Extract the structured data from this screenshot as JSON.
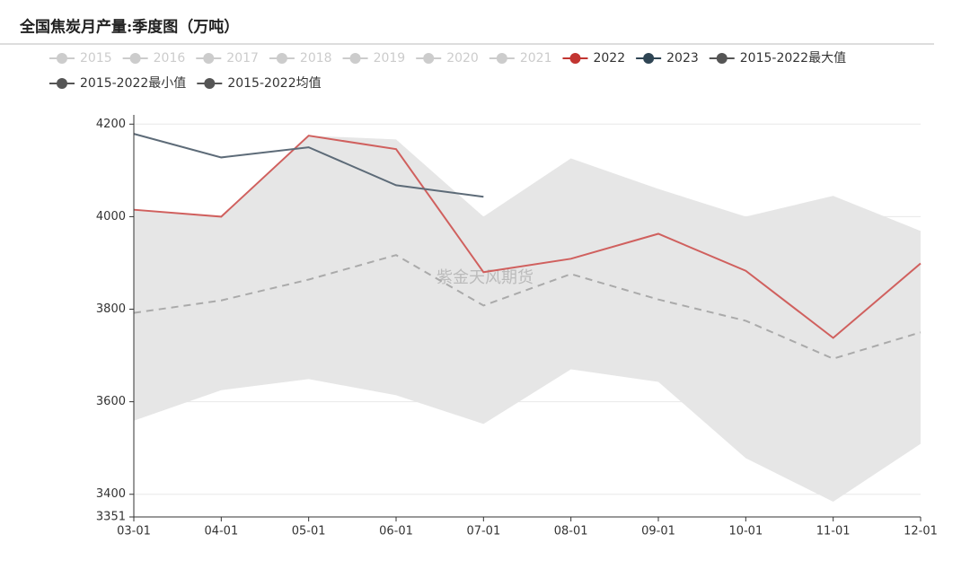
{
  "chart_data": {
    "type": "line",
    "title": "全国焦炭月产量:季度图（万吨）",
    "watermark": "紫金天风期货",
    "categories": [
      "03-01",
      "04-01",
      "05-01",
      "06-01",
      "07-01",
      "08-01",
      "09-01",
      "10-01",
      "11-01",
      "12-01"
    ],
    "hidden_series": [
      "2015",
      "2016",
      "2017",
      "2018",
      "2019",
      "2020",
      "2021"
    ],
    "hidden_color": "#cccccc",
    "band_color": "#e6e6e6",
    "series": [
      {
        "name": "2022",
        "color": "#c23531",
        "line_color": "#d0605e",
        "role": "line",
        "values": [
          4015,
          4000,
          4175,
          4146,
          3880,
          3909,
          3963,
          3883,
          3738,
          3899
        ]
      },
      {
        "name": "2023",
        "color": "#2f4554",
        "line_color": "#5d6b78",
        "role": "line",
        "values": [
          4179,
          4128,
          4150,
          4068,
          4043,
          null,
          null,
          null,
          null,
          null
        ]
      },
      {
        "name": "2015-2022最大值",
        "color": "#555555",
        "role": "band-upper",
        "values": [
          4015,
          4000,
          4175,
          4167,
          4000,
          4126,
          4060,
          4000,
          4045,
          3969
        ]
      },
      {
        "name": "2015-2022最小值",
        "color": "#555555",
        "role": "band-lower",
        "values": [
          3559,
          3625,
          3649,
          3614,
          3552,
          3670,
          3643,
          3478,
          3384,
          3509
        ]
      },
      {
        "name": "2015-2022均值",
        "color": "#555555",
        "line_color": "#aaaaaa",
        "role": "dashed",
        "values": [
          3792,
          3819,
          3864,
          3917,
          3808,
          3876,
          3821,
          3775,
          3693,
          3750
        ]
      }
    ],
    "ylim": [
      3351,
      4220
    ],
    "yticks": [
      3351,
      3400,
      3600,
      3800,
      4000,
      4200
    ],
    "grid": true
  }
}
